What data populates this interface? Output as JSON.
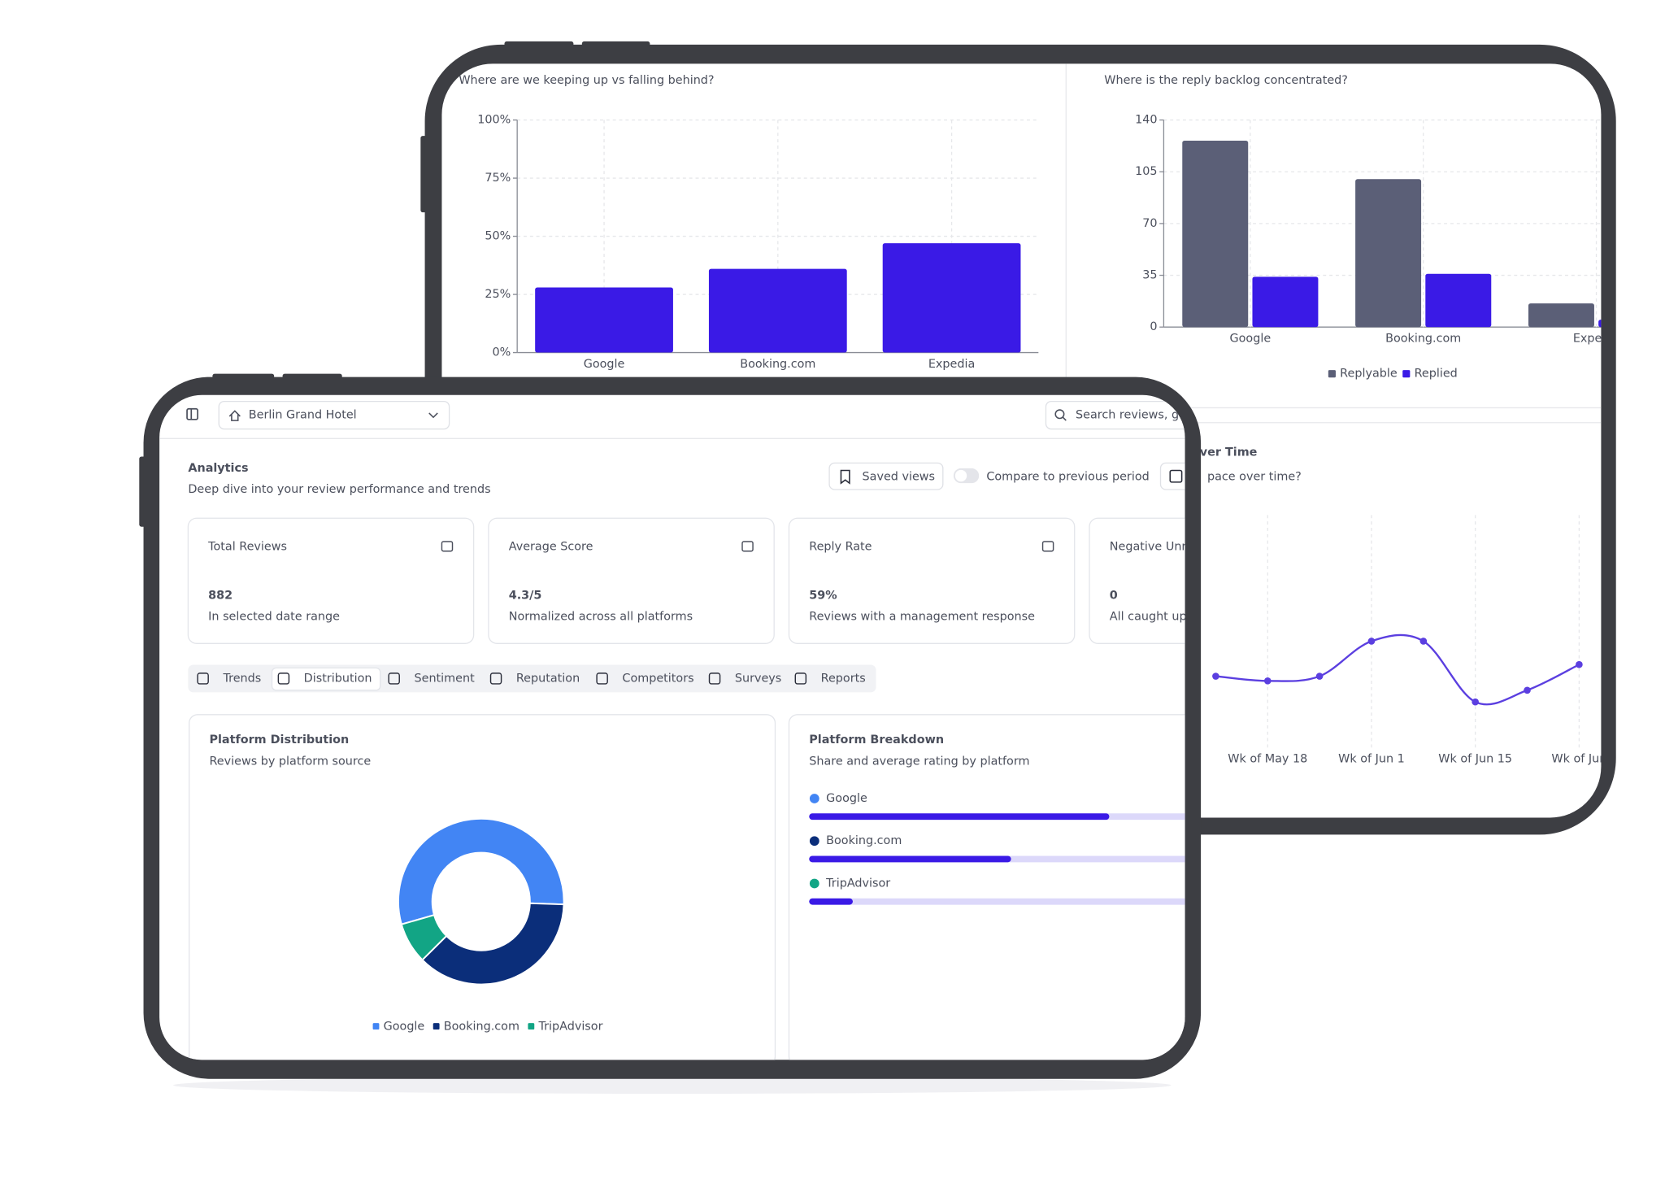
{
  "back_screen": {
    "left_chart": {
      "type": "bar",
      "subtitle": "Where are we keeping up vs falling behind?",
      "categories": [
        "Google",
        "Booking.com",
        "Expedia"
      ],
      "values": [
        28,
        36,
        47
      ],
      "color": "#3a1ae6",
      "ylim": [
        0,
        100
      ],
      "yticks": [
        {
          "value": 0,
          "label": "0%"
        },
        {
          "value": 25,
          "label": "25%"
        },
        {
          "value": 50,
          "label": "50%"
        },
        {
          "value": 75,
          "label": "75%"
        },
        {
          "value": 100,
          "label": "100%"
        }
      ],
      "grid": true
    },
    "right_chart": {
      "type": "bar",
      "subtitle": "Where is the reply backlog concentrated?",
      "categories": [
        "Google",
        "Booking.com",
        "Expedia"
      ],
      "series": [
        {
          "name": "Replyable",
          "color": "#5b5f77",
          "values": [
            126,
            100,
            16
          ]
        },
        {
          "name": "Replied",
          "color": "#3a1ae6",
          "values": [
            34,
            36,
            5
          ]
        }
      ],
      "ylim": [
        0,
        140
      ],
      "yticks": [
        0,
        35,
        70,
        105,
        140
      ],
      "grid": true
    },
    "line_chart": {
      "type": "line",
      "title": "ver Time",
      "subtitle": "pace over time?",
      "categories": [
        null,
        "Wk of May 18",
        null,
        "Wk of Jun 1",
        null,
        "Wk of Jun 15",
        null,
        "Wk of Jun"
      ],
      "values": [
        31,
        29,
        31,
        46,
        46,
        20,
        25,
        36
      ],
      "color": "#5b3fe0",
      "ylim": [
        0,
        100
      ]
    }
  },
  "front_screen": {
    "topbar": {
      "hotel": "Berlin Grand Hotel",
      "search_placeholder": "Search reviews, gu"
    },
    "header": {
      "title": "Analytics",
      "subtitle": "Deep dive into your review performance and trends",
      "saved_views": "Saved views",
      "compare": "Compare to previous period"
    },
    "kpis": [
      {
        "label": "Total Reviews",
        "value": "882",
        "note": "In selected date range"
      },
      {
        "label": "Average Score",
        "value": "4.3/5",
        "note": "Normalized across all platforms"
      },
      {
        "label": "Reply Rate",
        "value": "59%",
        "note": "Reviews with a management response"
      },
      {
        "label": "Negative Unr",
        "value": "0",
        "note": "All caught up"
      }
    ],
    "tabs": [
      "Trends",
      "Distribution",
      "Sentiment",
      "Reputation",
      "Competitors",
      "Surveys",
      "Reports"
    ],
    "active_tab": 1,
    "distribution": {
      "type": "pie",
      "title": "Platform Distribution",
      "subtitle": "Reviews by platform source",
      "categories": [
        "Google",
        "Booking.com",
        "TripAdvisor"
      ],
      "values": [
        55,
        37,
        8
      ],
      "colors": [
        "#4285f4",
        "#0b2e7a",
        "#12a585"
      ]
    },
    "breakdown": {
      "type": "bar",
      "title": "Platform Breakdown",
      "subtitle": "Share and average rating by platform",
      "categories": [
        "Google",
        "Booking.com",
        "TripAdvisor"
      ],
      "values": [
        55,
        37,
        8
      ],
      "xlim": [
        0,
        100
      ],
      "colors": [
        "#4285f4",
        "#0b2e7a",
        "#12a585"
      ],
      "bar_color": "#3a1ae6",
      "track_color": "#dcd8fa"
    }
  }
}
